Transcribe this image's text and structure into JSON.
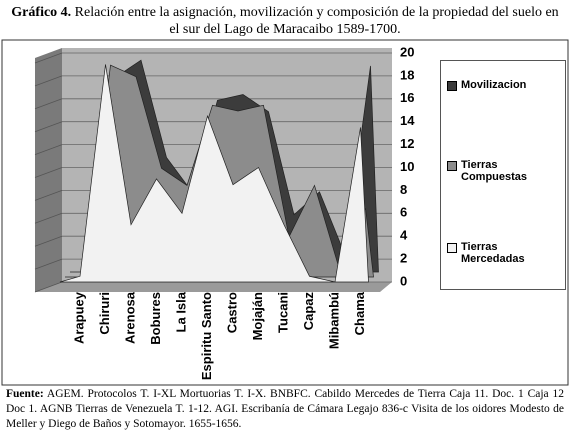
{
  "chart_data": {
    "type": "area3d",
    "figure_label": "Gráfico 4.",
    "title": "Relación entre la asignación, movilización y composición de la propiedad del suelo en el sur del Lago de Maracaibo 1589-1700.",
    "categories": [
      "Arapuey",
      "Chiruri",
      "Arenosa",
      "Bobures",
      "La Isla",
      "Espiritu Santo",
      "Castro",
      "Mojaján",
      "Tucani",
      "Capaz",
      "Mibambú",
      "Chama"
    ],
    "series": [
      {
        "name": "Movilizacion",
        "color": "#3c3c3c",
        "values": [
          0,
          17,
          18.5,
          10,
          7,
          15,
          15.5,
          14,
          5,
          7,
          1.5,
          18
        ]
      },
      {
        "name": "Tierras Compuestas",
        "color": "#8c8c8c",
        "values": [
          0,
          18.5,
          17.5,
          9.5,
          8,
          15,
          14.5,
          15,
          3.5,
          8,
          0.5,
          6
        ]
      },
      {
        "name": "Tierras Mercedadas",
        "color": "#f2f2f2",
        "values": [
          0.5,
          19,
          5,
          9,
          6,
          14.5,
          8.5,
          10,
          5,
          0.5,
          0,
          13.5
        ]
      }
    ],
    "ylim": [
      0,
      20
    ],
    "yticks": [
      0,
      2,
      4,
      6,
      8,
      10,
      12,
      14,
      16,
      18,
      20
    ],
    "grid": true,
    "source_label": "Fuente:",
    "source": "AGEM. Protocolos T. I-XL Mortuorias T. I-X. BNBFC. Cabildo Mercedes de Tierra Caja 11. Doc. 1 Caja 12 Doc 1. AGNB Tierras de Venezuela T. 1-12. AGI. Escribanía de Cámara Legajo 836-c Visita de los oidores Modesto de Meller y Diego de Baños y Sotomayor. 1655-1656."
  }
}
